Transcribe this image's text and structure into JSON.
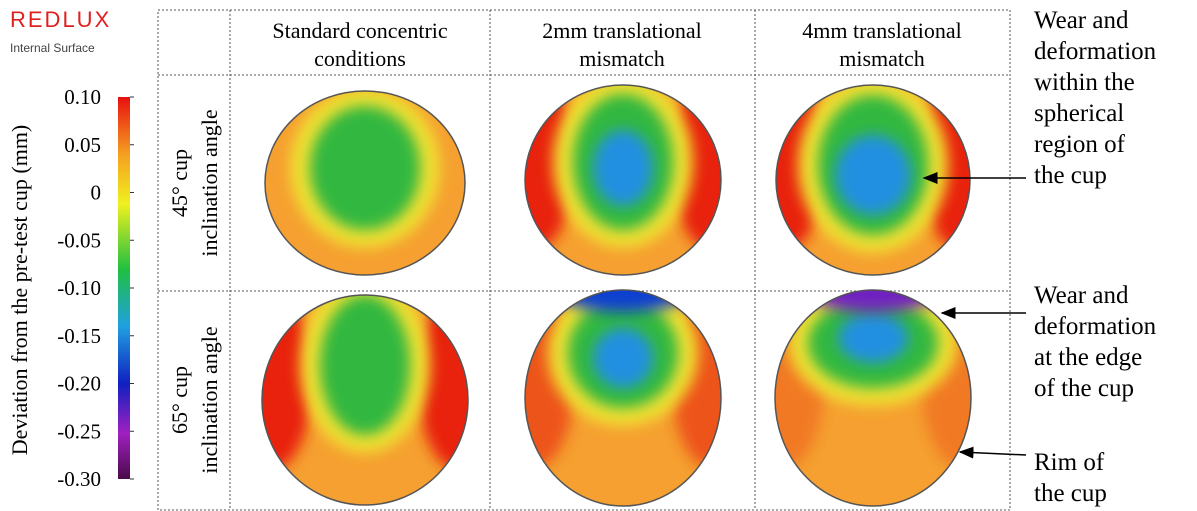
{
  "logo": {
    "brand": "REDLUX",
    "subtitle": "Internal Surface"
  },
  "colorbar": {
    "label": "Deviation from the pre-test cup (mm)",
    "lim": [
      -0.3,
      0.1
    ],
    "ticks": [
      {
        "value": 0.1,
        "label": "0.10"
      },
      0.05,
      0,
      -0.05,
      {
        "value": -0.1,
        "label": "-0.10"
      },
      -0.15,
      {
        "value": -0.2,
        "label": "-0.20"
      },
      -0.25,
      {
        "value": -0.3,
        "label": "-0.30"
      }
    ]
  },
  "table": {
    "columns": [
      [
        "Standard concentric",
        "conditions"
      ],
      [
        "2mm translational",
        "mismatch"
      ],
      [
        "4mm translational",
        "mismatch"
      ]
    ],
    "rows": [
      [
        "45° cup",
        "inclination angle"
      ],
      [
        "65° cup",
        "inclination angle"
      ]
    ]
  },
  "annotations": [
    {
      "lines": [
        "Wear and",
        "deformation",
        "within the",
        "spherical",
        "region of",
        "the cup"
      ]
    },
    {
      "lines": [
        "Wear and",
        "deformation",
        "at the edge",
        "of the cup"
      ]
    },
    {
      "lines": [
        "Rim of",
        "the cup"
      ]
    }
  ]
}
